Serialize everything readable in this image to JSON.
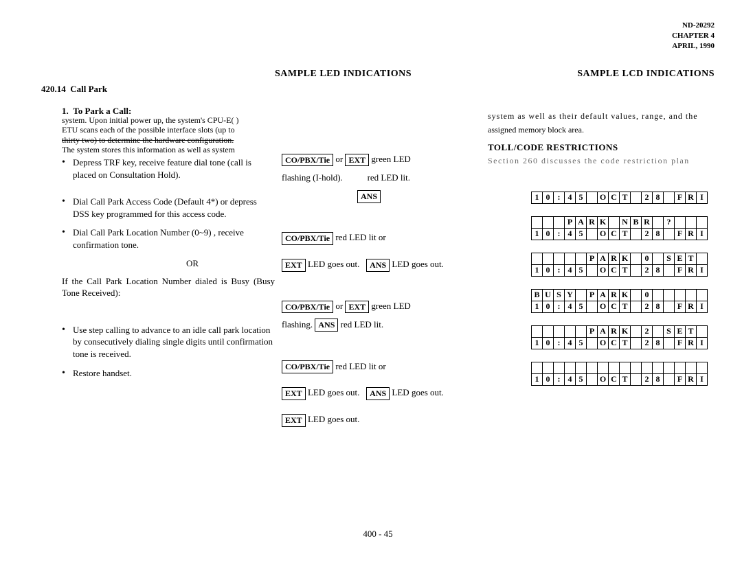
{
  "header": {
    "doc_id": "ND-20292",
    "chapter": "CHAPTER 4",
    "date": "APRIL, 1990"
  },
  "titles": {
    "led": "SAMPLE LED INDICATIONS",
    "lcd": "SAMPLE LCD INDICATIONS"
  },
  "section": {
    "number": "420.14",
    "name": "Call Park"
  },
  "sub": {
    "num": "1.",
    "title": "To Park a Call:"
  },
  "garble_top_lines": [
    "system. Upon initial power up, the system's CPU-E( )",
    "ETU scans each of the possible interface slots (up to",
    "thirty two) to determine the hardware configuration.",
    "The system stores this information as well as system"
  ],
  "left_steps": {
    "b1": "Depress TRF key, receive feature dial tone (call is placed on Consultation Hold).",
    "b2": "Dial Call Park Access Code (Default 4*) or depress DSS key programmed for this access code.",
    "b3": "Dial Call Park Location Number (0~9) , receive confirmation tone.",
    "or": "OR",
    "busy": "If the Call Park Location Number dialed is Busy (Busy Tone Received):",
    "b4": "Use step calling to advance to an idle call park location by consecutively dialing single digits until confirmation tone is received.",
    "b5": "Restore handset."
  },
  "mid": {
    "box_copbx": "CO/PBX/Tie",
    "box_ext": "EXT",
    "box_ans": "ANS",
    "txt_or": "or",
    "txt_green": "green LED",
    "txt_flash_ihold": "flashing (I-hold).",
    "txt_red_lit": "red LED lit.",
    "txt_red_lit_or": "red LED lit or",
    "txt_led_goesout": "LED goes out.",
    "txt_flashing": "flashing."
  },
  "rt": {
    "garble1": "system as well as their default values, range, and the",
    "garble2": "assigned memory block area.",
    "head2": "TOLL/CODE RESTRICTIONS",
    "garble3": "Section 260 discusses the code restriction plan"
  },
  "lcd_rows": {
    "date_row": [
      "1",
      "0",
      ":",
      "4",
      "5",
      " ",
      "O",
      "C",
      "T",
      " ",
      "2",
      "8",
      " ",
      "F",
      "R",
      "I"
    ],
    "blank_row": [
      " ",
      " ",
      " ",
      " ",
      " ",
      " ",
      " ",
      " ",
      " ",
      " ",
      " ",
      " ",
      " ",
      " ",
      " ",
      " "
    ],
    "park_nbr": [
      " ",
      " ",
      " ",
      "P",
      "A",
      "R",
      "K",
      " ",
      "N",
      "B",
      "R",
      " ",
      "?",
      " ",
      " ",
      " "
    ],
    "park0_set": [
      " ",
      " ",
      " ",
      " ",
      " ",
      "P",
      "A",
      "R",
      "K",
      " ",
      "0",
      " ",
      "S",
      "E",
      "T",
      " "
    ],
    "busy_park0": [
      "B",
      "U",
      "S",
      "Y",
      " ",
      "P",
      "A",
      "R",
      "K",
      " ",
      "0",
      " ",
      " ",
      " ",
      " ",
      " "
    ],
    "park2_set": [
      " ",
      " ",
      " ",
      " ",
      " ",
      "P",
      "A",
      "R",
      "K",
      " ",
      "2",
      " ",
      "S",
      "E",
      "T",
      " "
    ]
  },
  "footer": "400 - 45"
}
